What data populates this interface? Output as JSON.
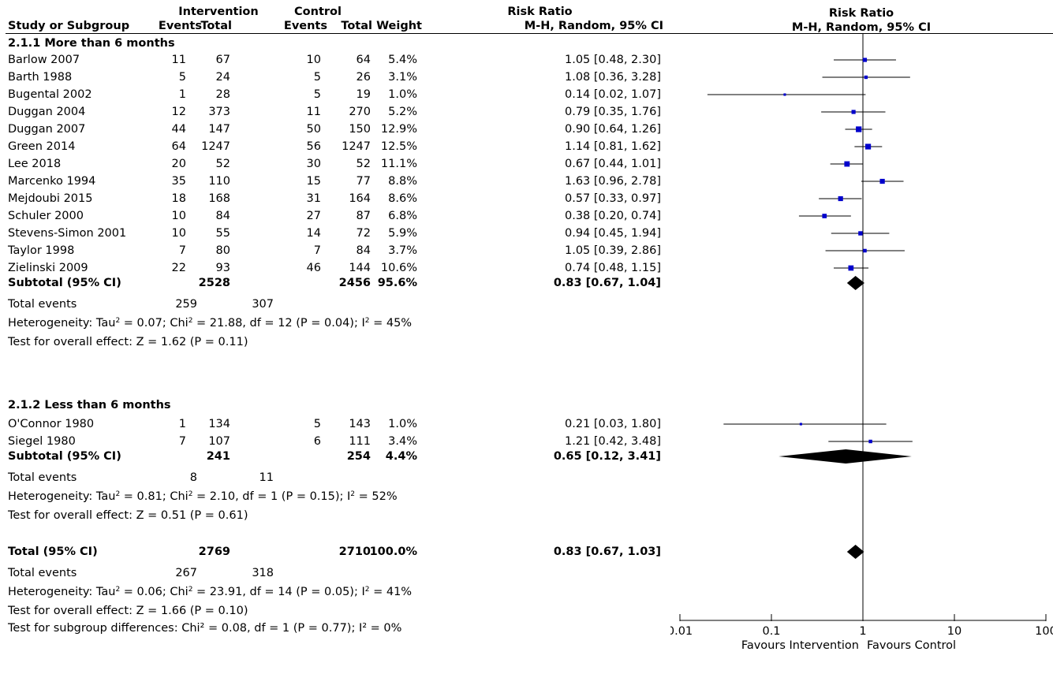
{
  "header": {
    "study_col": "Study or Subgroup",
    "intervention": "Intervention",
    "control": "Control",
    "events": "Events",
    "total": "Total",
    "weight": "Weight",
    "rr_title": "Risk Ratio",
    "rr_method": "M-H, Random, 95% CI",
    "plot_title": "Risk Ratio",
    "plot_method": "M-H, Random, 95% CI"
  },
  "groups": [
    {
      "title": "2.1.1 More than 6 months",
      "studies": [
        {
          "name": "Barlow 2007",
          "ie": "11",
          "it": "67",
          "ce": "10",
          "ct": "64",
          "w": "5.4%",
          "rr": "1.05 [0.48, 2.30]"
        },
        {
          "name": "Barth 1988",
          "ie": "5",
          "it": "24",
          "ce": "5",
          "ct": "26",
          "w": "3.1%",
          "rr": "1.08 [0.36, 3.28]"
        },
        {
          "name": "Bugental 2002",
          "ie": "1",
          "it": "28",
          "ce": "5",
          "ct": "19",
          "w": "1.0%",
          "rr": "0.14 [0.02, 1.07]"
        },
        {
          "name": "Duggan 2004",
          "ie": "12",
          "it": "373",
          "ce": "11",
          "ct": "270",
          "w": "5.2%",
          "rr": "0.79 [0.35, 1.76]"
        },
        {
          "name": "Duggan 2007",
          "ie": "44",
          "it": "147",
          "ce": "50",
          "ct": "150",
          "w": "12.9%",
          "rr": "0.90 [0.64, 1.26]"
        },
        {
          "name": "Green 2014",
          "ie": "64",
          "it": "1247",
          "ce": "56",
          "ct": "1247",
          "w": "12.5%",
          "rr": "1.14 [0.81, 1.62]"
        },
        {
          "name": "Lee 2018",
          "ie": "20",
          "it": "52",
          "ce": "30",
          "ct": "52",
          "w": "11.1%",
          "rr": "0.67 [0.44, 1.01]"
        },
        {
          "name": "Marcenko 1994",
          "ie": "35",
          "it": "110",
          "ce": "15",
          "ct": "77",
          "w": "8.8%",
          "rr": "1.63 [0.96, 2.78]"
        },
        {
          "name": "Mejdoubi 2015",
          "ie": "18",
          "it": "168",
          "ce": "31",
          "ct": "164",
          "w": "8.6%",
          "rr": "0.57 [0.33, 0.97]"
        },
        {
          "name": "Schuler 2000",
          "ie": "10",
          "it": "84",
          "ce": "27",
          "ct": "87",
          "w": "6.8%",
          "rr": "0.38 [0.20, 0.74]"
        },
        {
          "name": "Stevens-Simon 2001",
          "ie": "10",
          "it": "55",
          "ce": "14",
          "ct": "72",
          "w": "5.9%",
          "rr": "0.94 [0.45, 1.94]"
        },
        {
          "name": "Taylor 1998",
          "ie": "7",
          "it": "80",
          "ce": "7",
          "ct": "84",
          "w": "3.7%",
          "rr": "1.05 [0.39, 2.86]"
        },
        {
          "name": "Zielinski 2009",
          "ie": "22",
          "it": "93",
          "ce": "46",
          "ct": "144",
          "w": "10.6%",
          "rr": "0.74 [0.48, 1.15]"
        }
      ],
      "subtotal": {
        "label": "Subtotal (95% CI)",
        "it": "2528",
        "ct": "2456",
        "w": "95.6%",
        "rr": "0.83 [0.67, 1.04]"
      },
      "events": {
        "label": "Total events",
        "ie": "259",
        "ce": "307"
      },
      "het_a": "Heterogeneity: Tau",
      "het_b": " = 0.07; Chi",
      "het_c": " = 21.88, df = 12 (P = 0.04); I",
      "het_d": " = 45%",
      "test": "Test for overall effect: Z = 1.62 (P = 0.11)"
    },
    {
      "title": "2.1.2 Less than 6 months",
      "studies": [
        {
          "name": "O'Connor 1980",
          "ie": "1",
          "it": "134",
          "ce": "5",
          "ct": "143",
          "w": "1.0%",
          "rr": "0.21 [0.03, 1.80]"
        },
        {
          "name": "Siegel 1980",
          "ie": "7",
          "it": "107",
          "ce": "6",
          "ct": "111",
          "w": "3.4%",
          "rr": "1.21 [0.42, 3.48]"
        }
      ],
      "subtotal": {
        "label": "Subtotal (95% CI)",
        "it": "241",
        "ct": "254",
        "w": "4.4%",
        "rr": "0.65 [0.12, 3.41]"
      },
      "events": {
        "label": "Total events",
        "ie": "8",
        "ce": "11"
      },
      "het_a": "Heterogeneity: Tau",
      "het_b": " = 0.81; Chi",
      "het_c": " = 2.10, df = 1 (P = 0.15); I",
      "het_d": " = 52%",
      "test": "Test for overall effect: Z = 0.51 (P = 0.61)"
    }
  ],
  "total": {
    "label": "Total (95% CI)",
    "it": "2769",
    "ct": "2710",
    "w": "100.0%",
    "rr": "0.83 [0.67, 1.03]",
    "events": {
      "label": "Total events",
      "ie": "267",
      "ce": "318"
    },
    "het_a": "Heterogeneity: Tau",
    "het_b": " = 0.06; Chi",
    "het_c": " = 23.91, df = 14 (P = 0.05); I",
    "het_d": " = 41%",
    "test": "Test for overall effect: Z = 1.66 (P = 0.10)",
    "subgroup_test": "Test for subgroup differences: Chi² = 0.08, df = 1 (P = 0.77); I² = 0%"
  },
  "chart_data": {
    "type": "scatter",
    "title": "Risk Ratio",
    "subtitle": "M-H, Random, 95% CI",
    "x_scale": "log",
    "xlim": [
      0.01,
      100
    ],
    "x_ticks": [
      "0.01",
      "0.1",
      "1",
      "10",
      "100"
    ],
    "x_tick_values": [
      0.01,
      0.1,
      1,
      10,
      100
    ],
    "null_line": 1,
    "favours_left": "Favours Intervention",
    "favours_right": "Favours Control",
    "marker_color": "#0000cc",
    "studies": [
      {
        "est": 1.05,
        "lo": 0.48,
        "hi": 2.3,
        "weight": 5.4
      },
      {
        "est": 1.08,
        "lo": 0.36,
        "hi": 3.28,
        "weight": 3.1
      },
      {
        "est": 0.14,
        "lo": 0.02,
        "hi": 1.07,
        "weight": 1.0
      },
      {
        "est": 0.79,
        "lo": 0.35,
        "hi": 1.76,
        "weight": 5.2
      },
      {
        "est": 0.9,
        "lo": 0.64,
        "hi": 1.26,
        "weight": 12.9
      },
      {
        "est": 1.14,
        "lo": 0.81,
        "hi": 1.62,
        "weight": 12.5
      },
      {
        "est": 0.67,
        "lo": 0.44,
        "hi": 1.01,
        "weight": 11.1
      },
      {
        "est": 1.63,
        "lo": 0.96,
        "hi": 2.78,
        "weight": 8.8
      },
      {
        "est": 0.57,
        "lo": 0.33,
        "hi": 0.97,
        "weight": 8.6
      },
      {
        "est": 0.38,
        "lo": 0.2,
        "hi": 0.74,
        "weight": 6.8
      },
      {
        "est": 0.94,
        "lo": 0.45,
        "hi": 1.94,
        "weight": 5.9
      },
      {
        "est": 1.05,
        "lo": 0.39,
        "hi": 2.86,
        "weight": 3.7
      },
      {
        "est": 0.74,
        "lo": 0.48,
        "hi": 1.15,
        "weight": 10.6
      },
      {
        "est": 0.21,
        "lo": 0.03,
        "hi": 1.8,
        "weight": 1.0
      },
      {
        "est": 1.21,
        "lo": 0.42,
        "hi": 3.48,
        "weight": 3.4
      }
    ],
    "diamonds": [
      {
        "est": 0.83,
        "lo": 0.67,
        "hi": 1.04
      },
      {
        "est": 0.65,
        "lo": 0.12,
        "hi": 3.41
      },
      {
        "est": 0.83,
        "lo": 0.67,
        "hi": 1.03
      }
    ]
  }
}
